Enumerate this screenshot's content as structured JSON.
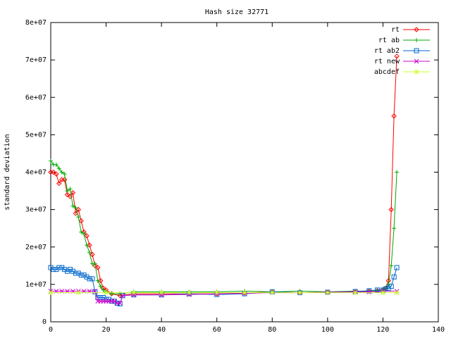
{
  "chart_data": {
    "type": "line",
    "title": "Hash size 32771",
    "xlabel": "",
    "ylabel": "standard deviation",
    "xlim": [
      0,
      140
    ],
    "ylim": [
      0,
      80000000
    ],
    "xticks": [
      0,
      20,
      40,
      60,
      80,
      100,
      120,
      140
    ],
    "yticks": [
      0,
      10000000,
      20000000,
      30000000,
      40000000,
      50000000,
      60000000,
      70000000,
      80000000
    ],
    "xtick_labels": [
      "0",
      "20",
      "40",
      "60",
      "80",
      "100",
      "120",
      "140"
    ],
    "ytick_labels": [
      "0",
      "1e+07",
      "2e+07",
      "3e+07",
      "4e+07",
      "5e+07",
      "6e+07",
      "7e+07",
      "8e+07"
    ],
    "grid": false,
    "legend_position": "top-right",
    "series": [
      {
        "name": "rt",
        "color": "#ff0000",
        "marker": "diamond",
        "x": [
          0,
          1,
          2,
          3,
          4,
          5,
          6,
          7,
          8,
          9,
          10,
          11,
          12,
          13,
          14,
          15,
          16,
          17,
          18,
          19,
          20,
          22,
          25,
          30,
          40,
          50,
          60,
          70,
          80,
          90,
          100,
          110,
          115,
          118,
          120,
          121,
          122,
          123,
          124,
          125
        ],
        "y": [
          40000000,
          40000000,
          39500000,
          37000000,
          38000000,
          38000000,
          34000000,
          33500000,
          34500000,
          29000000,
          30000000,
          27000000,
          24000000,
          23000000,
          20500000,
          18000000,
          15000000,
          14500000,
          11000000,
          9000000,
          8500000,
          7500000,
          7000000,
          7500000,
          7500000,
          7500000,
          7500000,
          7700000,
          8000000,
          7800000,
          7900000,
          8000000,
          8200000,
          8300000,
          8500000,
          9000000,
          11000000,
          30000000,
          55000000,
          71000000
        ]
      },
      {
        "name": "rt ab",
        "color": "#00aa00",
        "marker": "plus",
        "x": [
          0,
          1,
          2,
          3,
          4,
          5,
          6,
          7,
          8,
          9,
          10,
          11,
          12,
          13,
          14,
          15,
          16,
          17,
          18,
          19,
          20,
          22,
          25,
          30,
          40,
          50,
          60,
          70,
          80,
          90,
          100,
          110,
          115,
          118,
          120,
          121,
          122,
          123,
          124,
          125
        ],
        "y": [
          43000000,
          42000000,
          42000000,
          41000000,
          40000000,
          39500000,
          35000000,
          35500000,
          31000000,
          30500000,
          28000000,
          24000000,
          23500000,
          20500000,
          18500000,
          15500000,
          15500000,
          11000000,
          9500000,
          8500000,
          8000000,
          7500000,
          7500000,
          8000000,
          8000000,
          8000000,
          8000000,
          8200000,
          8000000,
          8200000,
          8000000,
          8200000,
          8200000,
          8300000,
          8500000,
          9000000,
          10000000,
          15000000,
          25000000,
          40000000
        ]
      },
      {
        "name": "rt ab2",
        "color": "#0066cc",
        "marker": "square",
        "x": [
          0,
          1,
          2,
          3,
          4,
          5,
          6,
          7,
          8,
          9,
          10,
          11,
          12,
          13,
          14,
          15,
          16,
          17,
          18,
          19,
          20,
          21,
          22,
          23,
          24,
          25,
          26,
          30,
          40,
          50,
          60,
          70,
          80,
          90,
          100,
          110,
          115,
          118,
          120,
          121,
          122,
          123,
          124,
          125
        ],
        "y": [
          14500000,
          14000000,
          14000000,
          14500000,
          14500000,
          14000000,
          13500000,
          14000000,
          13500000,
          13000000,
          13000000,
          12500000,
          12500000,
          12000000,
          11500000,
          11500000,
          8000000,
          6500000,
          6500000,
          6500000,
          6000000,
          6000000,
          5500000,
          5500000,
          5000000,
          4800000,
          7000000,
          7200000,
          7200000,
          7500000,
          7300000,
          7500000,
          8000000,
          7800000,
          7900000,
          8100000,
          8300000,
          8500000,
          8500000,
          8800000,
          9000000,
          9500000,
          12000000,
          14500000
        ]
      },
      {
        "name": "rt new",
        "color": "#cc00cc",
        "marker": "cross",
        "x": [
          0,
          2,
          4,
          6,
          8,
          10,
          12,
          14,
          16,
          17,
          18,
          19,
          20,
          21,
          22,
          23,
          24,
          25,
          26,
          30,
          40,
          50,
          60,
          70,
          80,
          90,
          100,
          110,
          115,
          120,
          125
        ],
        "y": [
          8200000,
          8200000,
          8200000,
          8200000,
          8200000,
          8200000,
          8200000,
          8200000,
          8200000,
          5500000,
          5500000,
          5500000,
          5500000,
          5500000,
          5500000,
          5500000,
          5000000,
          5000000,
          7000000,
          7200000,
          7200000,
          7300000,
          7500000,
          7600000,
          7800000,
          7800000,
          7900000,
          8000000,
          8000000,
          8200000,
          8200000
        ]
      },
      {
        "name": "abcdef",
        "color": "#ccff33",
        "marker": "star",
        "x": [
          0,
          10,
          20,
          30,
          40,
          50,
          60,
          70,
          80,
          90,
          100,
          110,
          120,
          125
        ],
        "y": [
          7800000,
          7800000,
          7800000,
          7800000,
          7800000,
          7800000,
          7800000,
          7800000,
          7800000,
          7800000,
          7800000,
          7800000,
          7800000,
          7800000
        ]
      }
    ]
  }
}
